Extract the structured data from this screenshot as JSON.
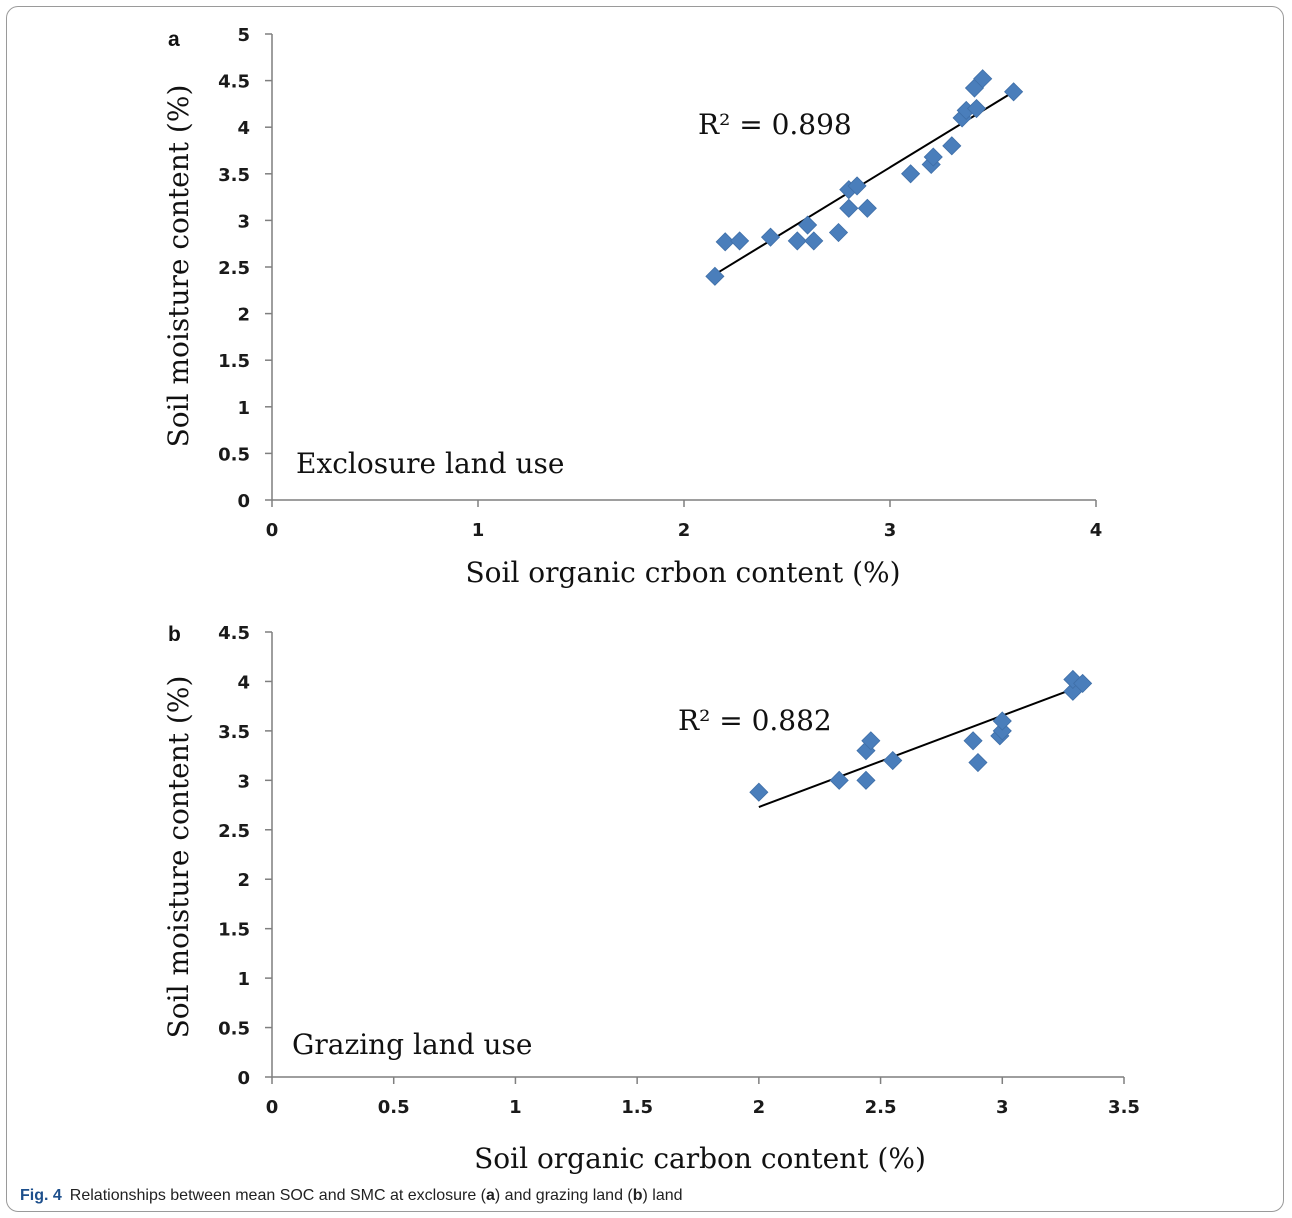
{
  "chart_data": [
    {
      "type": "scatter",
      "panel": "a",
      "xlabel": "Soil organic crbon content (%)",
      "ylabel": "Soil moisture content (%)",
      "xlim": [
        0,
        4
      ],
      "ylim": [
        0,
        5
      ],
      "xticks": [
        "0",
        "1",
        "2",
        "3",
        "4"
      ],
      "yticks": [
        "0",
        "0.5",
        "1",
        "1.5",
        "2",
        "2.5",
        "3",
        "3.5",
        "4",
        "4.5",
        "5"
      ],
      "annotation": "R² = 0.898",
      "label": "Exclosure land use",
      "marker_color": "#4a7ebb",
      "trendline": {
        "x": [
          2.15,
          3.6
        ],
        "y": [
          2.42,
          4.38
        ]
      },
      "points": [
        {
          "x": 2.15,
          "y": 2.4
        },
        {
          "x": 2.2,
          "y": 2.77
        },
        {
          "x": 2.27,
          "y": 2.78
        },
        {
          "x": 2.42,
          "y": 2.82
        },
        {
          "x": 2.55,
          "y": 2.78
        },
        {
          "x": 2.6,
          "y": 2.95
        },
        {
          "x": 2.63,
          "y": 2.78
        },
        {
          "x": 2.75,
          "y": 2.87
        },
        {
          "x": 2.8,
          "y": 3.13
        },
        {
          "x": 2.8,
          "y": 3.33
        },
        {
          "x": 2.84,
          "y": 3.37
        },
        {
          "x": 2.89,
          "y": 3.13
        },
        {
          "x": 3.1,
          "y": 3.5
        },
        {
          "x": 3.2,
          "y": 3.6
        },
        {
          "x": 3.21,
          "y": 3.68
        },
        {
          "x": 3.3,
          "y": 3.8
        },
        {
          "x": 3.35,
          "y": 4.1
        },
        {
          "x": 3.37,
          "y": 4.18
        },
        {
          "x": 3.42,
          "y": 4.2
        },
        {
          "x": 3.41,
          "y": 4.42
        },
        {
          "x": 3.45,
          "y": 4.52
        },
        {
          "x": 3.6,
          "y": 4.38
        }
      ]
    },
    {
      "type": "scatter",
      "panel": "b",
      "xlabel": "Soil organic carbon content (%)",
      "ylabel": "Soil moisture content (%)",
      "xlim": [
        0,
        3.5
      ],
      "ylim": [
        0,
        4.5
      ],
      "xticks": [
        "0",
        "0.5",
        "1",
        "1.5",
        "2",
        "2.5",
        "3",
        "3.5"
      ],
      "yticks": [
        "0",
        "0.5",
        "1",
        "1.5",
        "2",
        "2.5",
        "3",
        "3.5",
        "4",
        "4.5"
      ],
      "annotation": "R² = 0.882",
      "label": "Grazing land use",
      "marker_color": "#4a7ebb",
      "trendline": {
        "x": [
          2.0,
          3.33
        ],
        "y": [
          2.73,
          3.96
        ]
      },
      "points": [
        {
          "x": 2.0,
          "y": 2.88
        },
        {
          "x": 2.33,
          "y": 3.0
        },
        {
          "x": 2.44,
          "y": 3.0
        },
        {
          "x": 2.44,
          "y": 3.3
        },
        {
          "x": 2.46,
          "y": 3.4
        },
        {
          "x": 2.55,
          "y": 3.2
        },
        {
          "x": 2.88,
          "y": 3.4
        },
        {
          "x": 2.9,
          "y": 3.18
        },
        {
          "x": 2.99,
          "y": 3.45
        },
        {
          "x": 3.0,
          "y": 3.5
        },
        {
          "x": 3.0,
          "y": 3.6
        },
        {
          "x": 3.29,
          "y": 3.9
        },
        {
          "x": 3.29,
          "y": 4.02
        },
        {
          "x": 3.33,
          "y": 3.98
        }
      ]
    }
  ],
  "caption": {
    "fig_label": "Fig. 4",
    "text_1": "Relationships between mean SOC and SMC at exclosure (",
    "panel_a": "a",
    "text_2": ") and grazing land (",
    "panel_b": "b",
    "text_3": ") land"
  }
}
